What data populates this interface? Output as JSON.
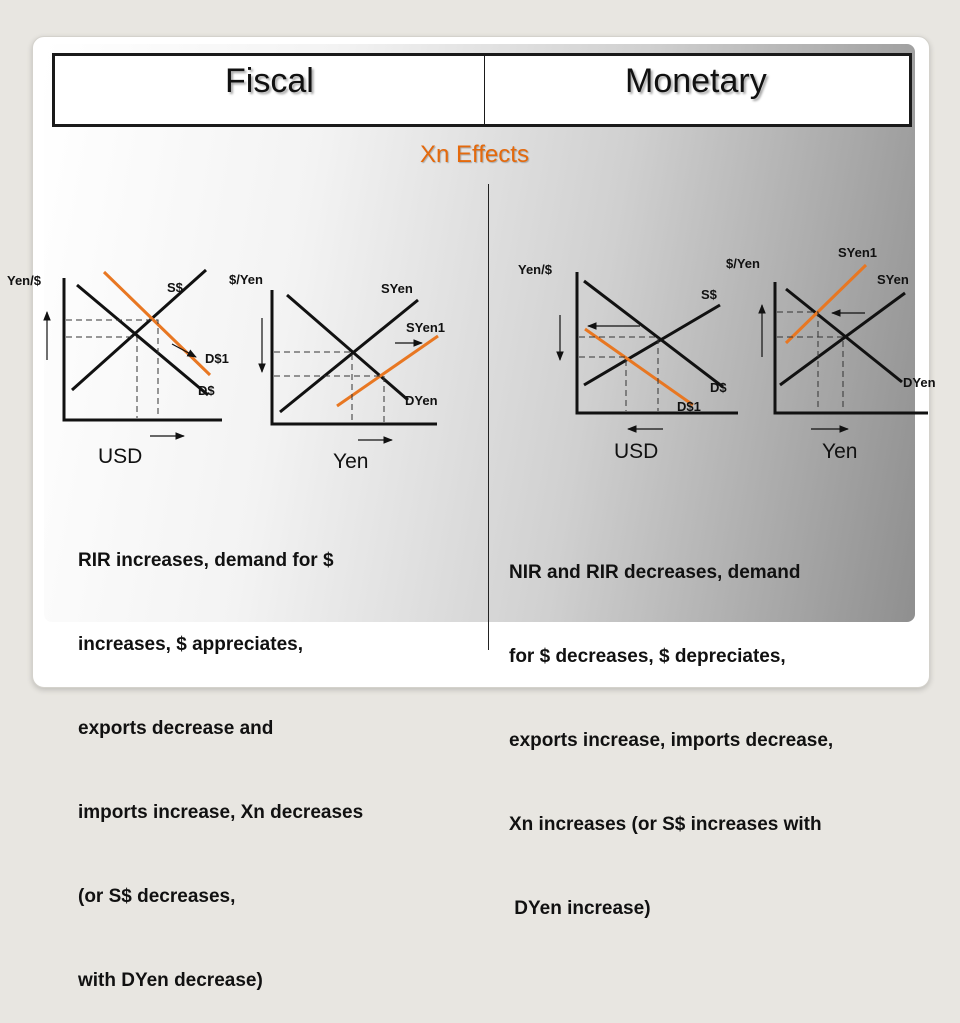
{
  "header": {
    "left": "Fiscal",
    "right": "Monetary"
  },
  "subtitle": "Xn Effects",
  "colors": {
    "shift_line": "#e87722",
    "subtitle": "#e4690c",
    "curve": "#111111"
  },
  "left_panel": {
    "usd_graph": {
      "y_label": "Yen/$",
      "supply": "S$",
      "demand": "D$",
      "demand_new": "D$1",
      "x_label": "USD"
    },
    "yen_graph": {
      "y_label": "$/Yen",
      "supply": "SYen",
      "supply_new": "SYen1",
      "demand": "DYen",
      "x_label": "Yen"
    },
    "explanation": [
      "RIR increases, demand for $",
      "increases, $ appreciates,",
      "exports decrease and",
      "imports increase, Xn decreases",
      "(or S$ decreases,",
      "with DYen decrease)"
    ]
  },
  "right_panel": {
    "usd_graph": {
      "y_label": "Yen/$",
      "supply": "S$",
      "demand": "D$",
      "demand_new": "D$1",
      "x_label": "USD"
    },
    "yen_graph": {
      "y_label": "$/Yen",
      "supply": "SYen",
      "supply_new": "SYen1",
      "demand": "DYen",
      "x_label": "Yen"
    },
    "explanation": [
      "NIR and RIR decreases, demand",
      "for $ decreases, $ depreciates,",
      "exports increase, imports decrease,",
      "Xn increases (or S$ increases with",
      " DYen increase)"
    ]
  }
}
